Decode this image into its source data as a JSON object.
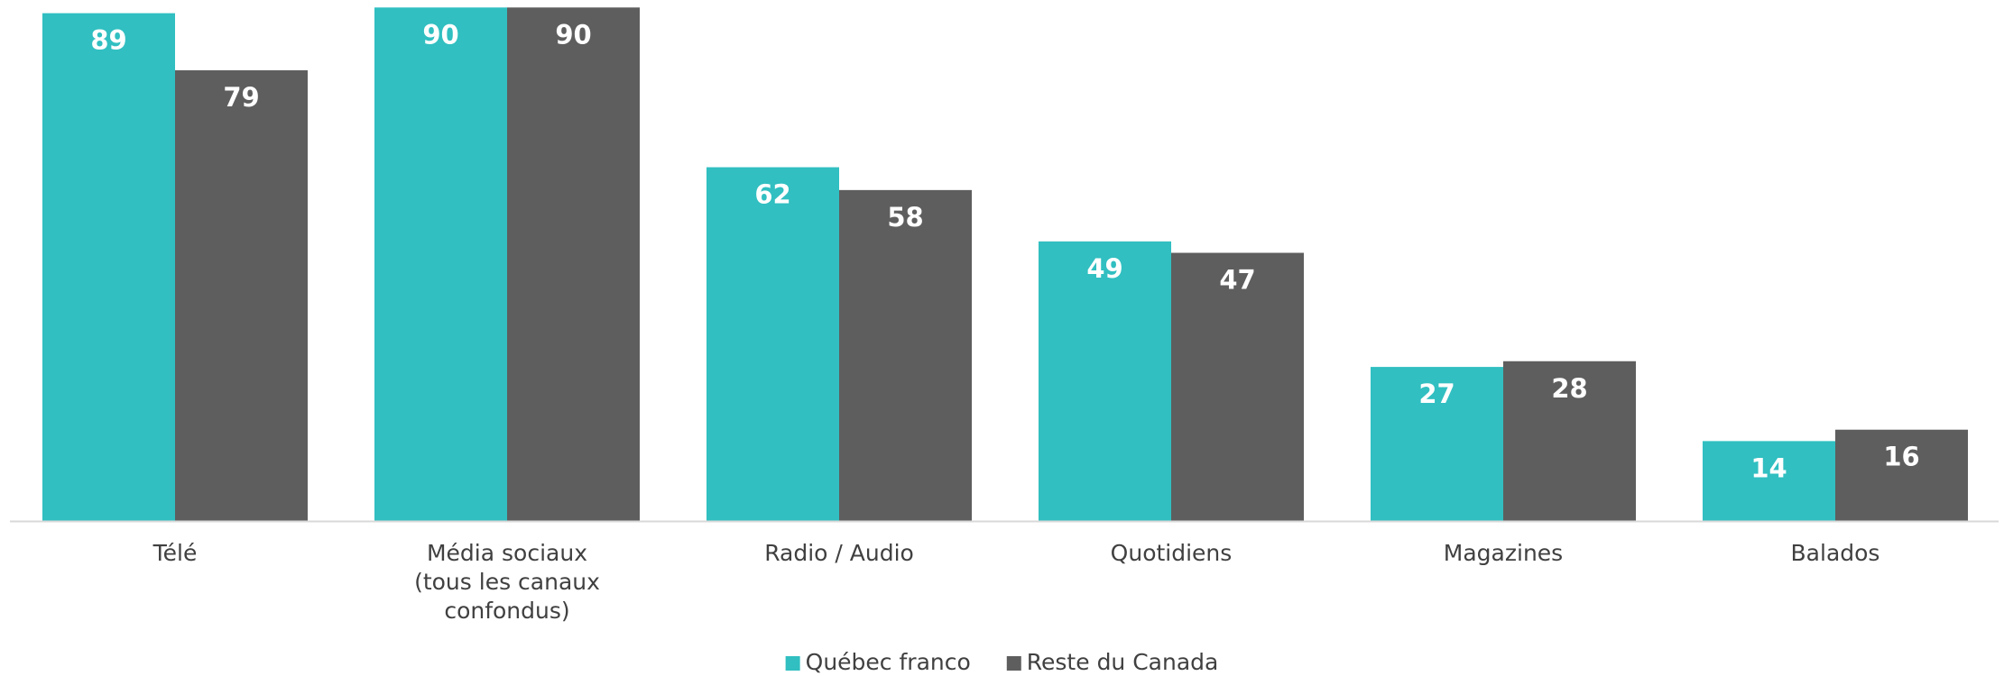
{
  "chart_data": {
    "type": "bar",
    "categories": [
      "Télé",
      "Média sociaux\n(tous les canaux\nconfondus)",
      "Radio / Audio",
      "Quotidiens",
      "Magazines",
      "Balados"
    ],
    "series": [
      {
        "name": "Québec franco",
        "color": "#31bfc1",
        "values": [
          89,
          90,
          62,
          49,
          27,
          14
        ]
      },
      {
        "name": "Reste du Canada",
        "color": "#5e5e5e",
        "values": [
          79,
          90,
          58,
          47,
          28,
          16
        ]
      }
    ],
    "legend": "bottom"
  }
}
